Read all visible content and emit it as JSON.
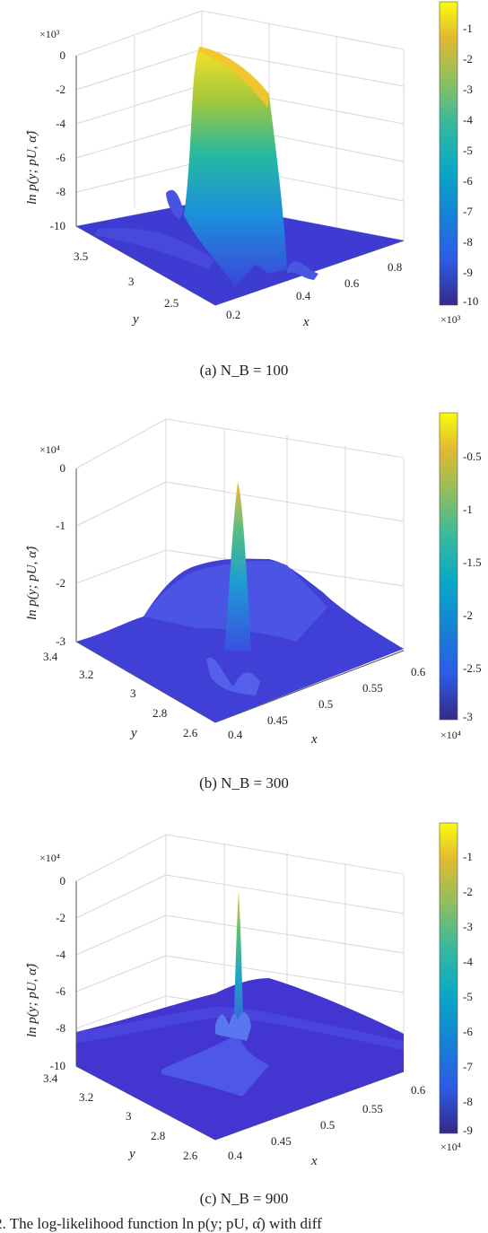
{
  "panels": [
    {
      "z_exponent_label": "×10³",
      "z_ticks": [
        "0",
        "-2",
        "-4",
        "-6",
        "-8",
        "-10"
      ],
      "z_label": "ln p(y; pU, α̂)",
      "y_label": "y",
      "y_ticks": [
        "3.5",
        "3",
        "2.5"
      ],
      "x_label": "x",
      "x_ticks": [
        "0.2",
        "0.4",
        "0.6",
        "0.8"
      ],
      "colorbar_ticks": [
        "-1",
        "-2",
        "-3",
        "-4",
        "-5",
        "-6",
        "-7",
        "-8",
        "-9",
        "-10"
      ],
      "colorbar_exponent_label": "×10³",
      "caption": "(a) N_B = 100"
    },
    {
      "z_exponent_label": "×10⁴",
      "z_ticks": [
        "0",
        "-1",
        "-2",
        "-3"
      ],
      "z_label": "ln p(y; pU, α̂)",
      "y_label": "y",
      "y_ticks": [
        "3.4",
        "3.2",
        "3",
        "2.8",
        "2.6"
      ],
      "x_label": "x",
      "x_ticks": [
        "0.4",
        "0.45",
        "0.5",
        "0.55",
        "0.6"
      ],
      "colorbar_ticks": [
        "-0.5",
        "-1",
        "-1.5",
        "-2",
        "-2.5",
        "-3"
      ],
      "colorbar_exponent_label": "×10⁴",
      "caption": "(b) N_B = 300"
    },
    {
      "z_exponent_label": "×10⁴",
      "z_ticks": [
        "0",
        "-2",
        "-4",
        "-6",
        "-8",
        "-10"
      ],
      "z_label": "ln p(y; pU, α̂)",
      "y_label": "y",
      "y_ticks": [
        "3.4",
        "3.2",
        "3",
        "2.8",
        "2.6"
      ],
      "x_label": "x",
      "x_ticks": [
        "0.4",
        "0.45",
        "0.5",
        "0.55",
        "0.6"
      ],
      "colorbar_ticks": [
        "-1",
        "-2",
        "-3",
        "-4",
        "-5",
        "-6",
        "-7",
        "-8",
        "-9"
      ],
      "colorbar_exponent_label": "×10⁴",
      "caption": "(c) N_B = 900"
    }
  ],
  "bottom_text": "2. The log-likelihood function ln p(y; pU, α̂) with diff",
  "colors": {
    "parula_low": "#352a87",
    "parula_mid_blue": "#1e7bd8",
    "parula_teal": "#1fb3a8",
    "parula_high": "#f9fb0e"
  },
  "chart_data": [
    {
      "type": "surface",
      "x": {
        "label": "x",
        "ticks": [
          0.2,
          0.4,
          0.6,
          0.8
        ]
      },
      "y": {
        "label": "y",
        "ticks": [
          2.5,
          3,
          3.5
        ]
      },
      "z": {
        "label": "ln p(y; pU, α̂)",
        "range": [
          -10000,
          0
        ],
        "multiplier": 1000
      },
      "colorbar": {
        "range": [
          -10,
          0
        ],
        "multiplier": 1000
      },
      "grid": true,
      "caption": "(a) N_B = 100"
    },
    {
      "type": "surface",
      "x": {
        "label": "x",
        "ticks": [
          0.4,
          0.45,
          0.5,
          0.55,
          0.6
        ]
      },
      "y": {
        "label": "y",
        "ticks": [
          2.6,
          2.8,
          3,
          3.2,
          3.4
        ]
      },
      "z": {
        "label": "ln p(y; pU, α̂)",
        "range": [
          -30000,
          0
        ],
        "multiplier": 10000
      },
      "colorbar": {
        "range": [
          -3,
          0
        ],
        "multiplier": 10000
      },
      "grid": true,
      "caption": "(b) N_B = 300"
    },
    {
      "type": "surface",
      "x": {
        "label": "x",
        "ticks": [
          0.4,
          0.45,
          0.5,
          0.55,
          0.6
        ]
      },
      "y": {
        "label": "y",
        "ticks": [
          2.6,
          2.8,
          3,
          3.2,
          3.4
        ]
      },
      "z": {
        "label": "ln p(y; pU, α̂)",
        "range": [
          -100000,
          0
        ],
        "multiplier": 10000
      },
      "colorbar": {
        "range": [
          -9,
          0
        ],
        "multiplier": 10000
      },
      "grid": true,
      "caption": "(c) N_B = 900"
    }
  ]
}
